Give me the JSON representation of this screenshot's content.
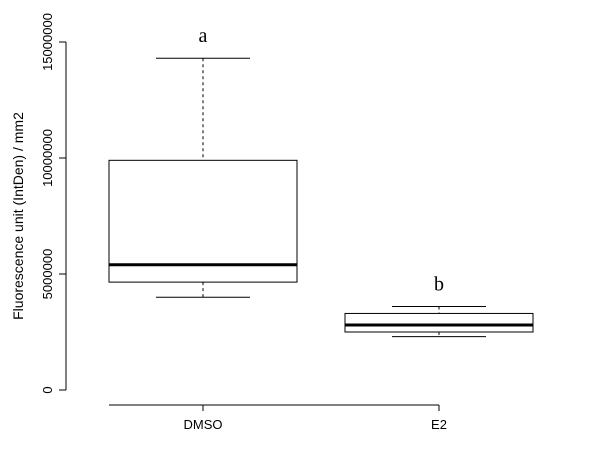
{
  "chart_data": {
    "type": "boxplot",
    "title": "",
    "xlabel": "",
    "ylabel": "Fluorescence unit (IntDen) / mm2",
    "ylim": [
      0,
      15000000
    ],
    "yticks": [
      0,
      5000000,
      10000000,
      15000000
    ],
    "ytick_labels": [
      "0",
      "5000000",
      "10000000",
      "15000000"
    ],
    "grid": false,
    "categories": [
      "DMSO",
      "E2"
    ],
    "boxes": [
      {
        "category": "DMSO",
        "min": 4000000,
        "q1": 4650000,
        "median": 5400000,
        "q3": 9900000,
        "max": 14300000,
        "annotation": "a"
      },
      {
        "category": "E2",
        "min": 2300000,
        "q1": 2500000,
        "median": 2800000,
        "q3": 3300000,
        "max": 3600000,
        "annotation": "b"
      }
    ]
  }
}
